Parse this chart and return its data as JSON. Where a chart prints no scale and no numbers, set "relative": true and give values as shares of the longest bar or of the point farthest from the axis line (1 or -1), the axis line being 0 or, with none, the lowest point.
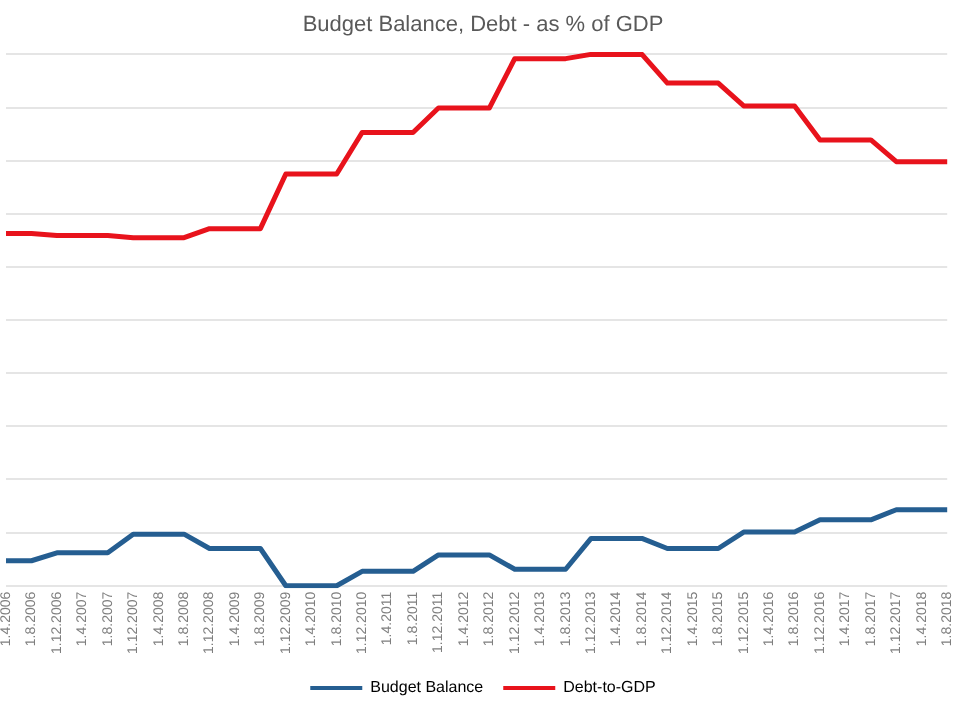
{
  "chart_data": {
    "type": "line",
    "title": "Budget Balance, Debt - as % of GDP",
    "relative": true,
    "grid": "y",
    "legend": "bottom",
    "marker": "none",
    "line_style": "solid",
    "categories": [
      "1.4.2006",
      "1.8.2006",
      "1.12.2006",
      "1.4.2007",
      "1.8.2007",
      "1.12.2007",
      "1.4.2008",
      "1.8.2008",
      "1.12.2008",
      "1.4.2009",
      "1.8.2009",
      "1.12.2009",
      "1.4.2010",
      "1.8.2010",
      "1.12.2010",
      "1.4.2011",
      "1.8.2011",
      "1.12.2011",
      "1.4.2012",
      "1.8.2012",
      "1.12.2012",
      "1.4.2013",
      "1.8.2013",
      "1.12.2013",
      "1.4.2014",
      "1.8.2014",
      "1.12.2014",
      "1.4.2015",
      "1.8.2015",
      "1.12.2015",
      "1.4.2016",
      "1.8.2016",
      "1.12.2016",
      "1.4.2017",
      "1.8.2017",
      "1.12.2017",
      "1.4.2018",
      "1.8.2018"
    ],
    "series": [
      {
        "name": "Budget Balance",
        "color": "#255e91",
        "values": [
          0.047,
          0.047,
          0.062,
          0.062,
          0.062,
          0.097,
          0.097,
          0.097,
          0.07,
          0.07,
          0.07,
          0,
          0,
          0,
          0.027,
          0.027,
          0.027,
          0.058,
          0.058,
          0.058,
          0.031,
          0.031,
          0.031,
          0.089,
          0.089,
          0.089,
          0.07,
          0.07,
          0.07,
          0.101,
          0.101,
          0.101,
          0.124,
          0.124,
          0.124,
          0.143,
          0.143,
          0.143
        ]
      },
      {
        "name": "Debt-to-GDP",
        "color": "#e8131c",
        "values": [
          0.663,
          0.663,
          0.659,
          0.659,
          0.659,
          0.655,
          0.655,
          0.655,
          0.672,
          0.672,
          0.672,
          0.775,
          0.775,
          0.775,
          0.853,
          0.853,
          0.853,
          0.899,
          0.899,
          0.899,
          0.992,
          0.992,
          0.992,
          1,
          1,
          1,
          0.946,
          0.946,
          0.946,
          0.903,
          0.903,
          0.903,
          0.839,
          0.839,
          0.839,
          0.798,
          0.798,
          0.798
        ]
      }
    ]
  }
}
